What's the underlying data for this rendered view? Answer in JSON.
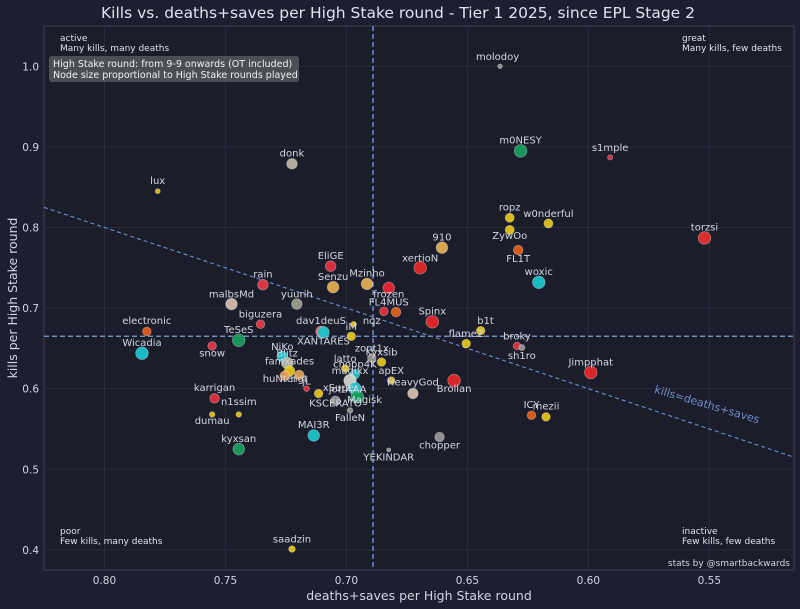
{
  "chart_data": {
    "type": "scatter",
    "title": "Kills vs. deaths+saves per High Stake round - Tier 1 2025, since EPL Stage 2",
    "xlabel": "deaths+saves per High Stake round",
    "ylabel": "kills per High Stake round",
    "xlim": [
      0.825,
      0.515
    ],
    "ylim": [
      0.375,
      1.05
    ],
    "x_inverted": true,
    "grid": true,
    "x_ticks": [
      "0.80",
      "0.75",
      "0.70",
      "0.65",
      "0.60",
      "0.55"
    ],
    "y_ticks": [
      "0.4",
      "0.5",
      "0.6",
      "0.7",
      "0.8",
      "0.9",
      "1.0"
    ],
    "reference_lines": {
      "x_mean": 0.689,
      "y_mean": 0.665
    },
    "trend_line": {
      "label": "kills=deaths+saves"
    },
    "quadrant_labels": {
      "top_left": [
        "active",
        "Many kills, many deaths"
      ],
      "top_right": [
        "great",
        "Many kills, few deaths"
      ],
      "bottom_left": [
        "poor",
        "Few kills, many deaths"
      ],
      "bottom_right": [
        "inactive",
        "Few kills, few deaths"
      ]
    },
    "note": [
      "High Stake round: from 9-9 onwards (OT included)",
      "Node size proportional to High Stake rounds played"
    ],
    "credit": "stats by @smartbackwards",
    "points": [
      {
        "name": "molodoy",
        "x": 0.6365,
        "y": 1.0,
        "size": 3,
        "color": "#9a9a9a"
      },
      {
        "name": "m0NESY",
        "x": 0.628,
        "y": 0.895,
        "size": 11,
        "color": "#18a060"
      },
      {
        "name": "s1mple",
        "x": 0.591,
        "y": 0.887,
        "size": 3.5,
        "color": "#e03050"
      },
      {
        "name": "donk",
        "x": 0.7225,
        "y": 0.879,
        "size": 9,
        "color": "#c0b8a8"
      },
      {
        "name": "lux",
        "x": 0.778,
        "y": 0.845,
        "size": 3.5,
        "color": "#e8b818"
      },
      {
        "name": "torzsi",
        "x": 0.552,
        "y": 0.787,
        "size": 11,
        "color": "#e83030"
      },
      {
        "name": "ropz",
        "x": 0.6325,
        "y": 0.812,
        "size": 7.5,
        "color": "#e8c818"
      },
      {
        "name": "w0nderful",
        "x": 0.6165,
        "y": 0.805,
        "size": 7.5,
        "color": "#e8c818"
      },
      {
        "name": "ZywOo",
        "x": 0.6325,
        "y": 0.797,
        "size": 7.5,
        "color": "#e8c818"
      },
      {
        "name": "910",
        "x": 0.6605,
        "y": 0.775,
        "size": 10,
        "color": "#e8b050"
      },
      {
        "name": "FL1T",
        "x": 0.629,
        "y": 0.772,
        "size": 8,
        "color": "#e86018"
      },
      {
        "name": "EliGE",
        "x": 0.7065,
        "y": 0.752,
        "size": 9,
        "color": "#e83040"
      },
      {
        "name": "xertioN",
        "x": 0.6695,
        "y": 0.75,
        "size": 11,
        "color": "#e82828"
      },
      {
        "name": "woxic",
        "x": 0.6205,
        "y": 0.732,
        "size": 11,
        "color": "#18c8d0"
      },
      {
        "name": "rain",
        "x": 0.7345,
        "y": 0.729,
        "size": 9,
        "color": "#e83848"
      },
      {
        "name": "Senzu",
        "x": 0.7055,
        "y": 0.726,
        "size": 10,
        "color": "#e8b050"
      },
      {
        "name": "Mzinho",
        "x": 0.6915,
        "y": 0.73,
        "size": 10,
        "color": "#e8b050"
      },
      {
        "name": "frozen",
        "x": 0.6825,
        "y": 0.725,
        "size": 10,
        "color": "#e82838"
      },
      {
        "name": "malbsMd",
        "x": 0.7475,
        "y": 0.705,
        "size": 10,
        "color": "#d8c0b0"
      },
      {
        "name": "yuurih",
        "x": 0.7205,
        "y": 0.705,
        "size": 9,
        "color": "#a0a090"
      },
      {
        "name": "FL4MUS",
        "x": 0.6845,
        "y": 0.696,
        "size": 7,
        "color": "#e83040"
      },
      {
        "name": "apEX",
        "x": 0.6795,
        "y": 0.695,
        "size": 8,
        "color": "#e86018"
      },
      {
        "name": "biguzera",
        "x": 0.7355,
        "y": 0.68,
        "size": 7,
        "color": "#e83848"
      },
      {
        "name": "Spinx",
        "x": 0.6645,
        "y": 0.683,
        "size": 11,
        "color": "#e82828"
      },
      {
        "name": "dav1deuS",
        "x": 0.7105,
        "y": 0.671,
        "size": 9,
        "color": "#e86060"
      },
      {
        "name": "electronic",
        "x": 0.7825,
        "y": 0.671,
        "size": 7,
        "color": "#e86018"
      },
      {
        "name": "nqz",
        "x": 0.697,
        "y": 0.68,
        "size": 4,
        "color": "#e8c818"
      },
      {
        "name": "b1t",
        "x": 0.6445,
        "y": 0.672,
        "size": 7,
        "color": "#e8c818"
      },
      {
        "name": "XANTARES",
        "x": 0.7095,
        "y": 0.67,
        "size": 10,
        "color": "#18c8d0"
      },
      {
        "name": "iM",
        "x": 0.698,
        "y": 0.665,
        "size": 7,
        "color": "#e8c818"
      },
      {
        "name": "TeSeS",
        "x": 0.7445,
        "y": 0.66,
        "size": 11,
        "color": "#18a060"
      },
      {
        "name": "flameZ",
        "x": 0.6505,
        "y": 0.656,
        "size": 7,
        "color": "#e8c818"
      },
      {
        "name": "broky",
        "x": 0.6295,
        "y": 0.653,
        "size": 6,
        "color": "#e83040"
      },
      {
        "name": "sh1ro",
        "x": 0.6275,
        "y": 0.651,
        "size": 4.5,
        "color": "#9a9a9a"
      },
      {
        "name": "snow",
        "x": 0.7555,
        "y": 0.653,
        "size": 7,
        "color": "#e83848"
      },
      {
        "name": "Wicadia",
        "x": 0.7845,
        "y": 0.644,
        "size": 11,
        "color": "#18c8d0"
      },
      {
        "name": "NiKo",
        "x": 0.7265,
        "y": 0.64,
        "size": 9,
        "color": "#18c8d0"
      },
      {
        "name": "zont1x",
        "x": 0.6895,
        "y": 0.638,
        "size": 7,
        "color": "#9a9a9a"
      },
      {
        "name": "Kyxsib",
        "x": 0.6855,
        "y": 0.633,
        "size": 7,
        "color": "#e8c818"
      },
      {
        "name": "Blitz",
        "x": 0.7245,
        "y": 0.632,
        "size": 10,
        "color": "#b8b8a8"
      },
      {
        "name": "latto",
        "x": 0.7005,
        "y": 0.625,
        "size": 6,
        "color": "#e8c818"
      },
      {
        "name": "famxades",
        "x": 0.7235,
        "y": 0.622,
        "size": 9,
        "color": "#e8c818"
      },
      {
        "name": "Jimpphat",
        "x": 0.599,
        "y": 0.62,
        "size": 11,
        "color": "#e82828"
      },
      {
        "name": "chopper4K",
        "x": 0.6965,
        "y": 0.618,
        "size": 8,
        "color": "#18c8d0"
      },
      {
        "name": "magixx",
        "x": 0.6985,
        "y": 0.61,
        "size": 11,
        "color": "#d8d8d0"
      },
      {
        "name": "apEX2",
        "x": 0.6815,
        "y": 0.61,
        "size": 6,
        "color": "#e8c818"
      },
      {
        "name": "hunter",
        "x": 0.7255,
        "y": 0.616,
        "size": 8,
        "color": "#e8a050"
      },
      {
        "name": "rigt",
        "x": 0.7195,
        "y": 0.617,
        "size": 8,
        "color": "#e8a050"
      },
      {
        "name": "Brollan",
        "x": 0.6555,
        "y": 0.61,
        "size": 11,
        "color": "#e82828"
      },
      {
        "name": "HeavyGod",
        "x": 0.6725,
        "y": 0.594,
        "size": 9,
        "color": "#d8c0b0"
      },
      {
        "name": "jottAAA",
        "x": 0.6965,
        "y": 0.6,
        "size": 11,
        "color": "#18c8d0"
      },
      {
        "name": "Magisk",
        "x": 0.6955,
        "y": 0.59,
        "size": 11,
        "color": "#18a060"
      },
      {
        "name": "jL",
        "x": 0.7165,
        "y": 0.6,
        "size": 4,
        "color": "#e83040"
      },
      {
        "name": "xSuper",
        "x": 0.7115,
        "y": 0.594,
        "size": 7,
        "color": "#e8c818"
      },
      {
        "name": "karrigan",
        "x": 0.7545,
        "y": 0.588,
        "size": 8,
        "color": "#e83040"
      },
      {
        "name": "KSCERATO",
        "x": 0.7045,
        "y": 0.585,
        "size": 8,
        "color": "#9a9a9a"
      },
      {
        "name": "n1ssim",
        "x": 0.7445,
        "y": 0.568,
        "size": 4,
        "color": "#e8c818"
      },
      {
        "name": "dumau",
        "x": 0.7555,
        "y": 0.568,
        "size": 4,
        "color": "#e8c818"
      },
      {
        "name": "ICY",
        "x": 0.6235,
        "y": 0.567,
        "size": 7,
        "color": "#e86018"
      },
      {
        "name": "mezii",
        "x": 0.6175,
        "y": 0.565,
        "size": 7,
        "color": "#e8c818"
      },
      {
        "name": "FalleN",
        "x": 0.6985,
        "y": 0.573,
        "size": 4,
        "color": "#9a9a9a"
      },
      {
        "name": "MAI3R",
        "x": 0.7135,
        "y": 0.542,
        "size": 10,
        "color": "#18c8d0"
      },
      {
        "name": "chopper",
        "x": 0.6615,
        "y": 0.54,
        "size": 8,
        "color": "#9a9a9a"
      },
      {
        "name": "kyxsan",
        "x": 0.7445,
        "y": 0.525,
        "size": 10,
        "color": "#18a060"
      },
      {
        "name": "YEKINDAR",
        "x": 0.6825,
        "y": 0.524,
        "size": 2.5,
        "color": "#9a9a9a"
      },
      {
        "name": "saadzin",
        "x": 0.7225,
        "y": 0.401,
        "size": 5,
        "color": "#e8c818"
      }
    ],
    "labels": [
      {
        "text": "molodoy",
        "x": 0.6375,
        "y": 1.008
      },
      {
        "text": "m0NESY",
        "x": 0.628,
        "y": 0.904
      },
      {
        "text": "s1mple",
        "x": 0.591,
        "y": 0.895
      },
      {
        "text": "donk",
        "x": 0.7225,
        "y": 0.888
      },
      {
        "text": "lux",
        "x": 0.778,
        "y": 0.854
      },
      {
        "text": "torzsi",
        "x": 0.552,
        "y": 0.796
      },
      {
        "text": "ropz",
        "x": 0.6325,
        "y": 0.821
      },
      {
        "text": "w0nderful",
        "x": 0.6165,
        "y": 0.813
      },
      {
        "text": "ZywOo",
        "x": 0.6325,
        "y": 0.786
      },
      {
        "text": "910",
        "x": 0.6605,
        "y": 0.784
      },
      {
        "text": "FL1T",
        "x": 0.629,
        "y": 0.757
      },
      {
        "text": "EliGE",
        "x": 0.7065,
        "y": 0.761
      },
      {
        "text": "xertioN",
        "x": 0.6695,
        "y": 0.758
      },
      {
        "text": "woxic",
        "x": 0.6205,
        "y": 0.741
      },
      {
        "text": "rain",
        "x": 0.7345,
        "y": 0.738
      },
      {
        "text": "Senzu",
        "x": 0.7055,
        "y": 0.735
      },
      {
        "text": "Mzinho",
        "x": 0.6915,
        "y": 0.739
      },
      {
        "text": "frozen",
        "x": 0.6825,
        "y": 0.713
      },
      {
        "text": "malbsMd",
        "x": 0.7475,
        "y": 0.713
      },
      {
        "text": "yuurih",
        "x": 0.7205,
        "y": 0.713
      },
      {
        "text": "FL4MUS",
        "x": 0.6825,
        "y": 0.703
      },
      {
        "text": "biguzera",
        "x": 0.7355,
        "y": 0.688
      },
      {
        "text": "Spinx",
        "x": 0.6645,
        "y": 0.692
      },
      {
        "text": "dav1deuS",
        "x": 0.7105,
        "y": 0.68
      },
      {
        "text": "electronic",
        "x": 0.7825,
        "y": 0.68
      },
      {
        "text": "nqz",
        "x": 0.6895,
        "y": 0.68
      },
      {
        "text": "b1t",
        "x": 0.6425,
        "y": 0.68
      },
      {
        "text": "XANTARES",
        "x": 0.7095,
        "y": 0.655
      },
      {
        "text": "iM",
        "x": 0.698,
        "y": 0.673
      },
      {
        "text": "TeSeS",
        "x": 0.7445,
        "y": 0.669
      },
      {
        "text": "flameZ",
        "x": 0.6505,
        "y": 0.664
      },
      {
        "text": "broky",
        "x": 0.6295,
        "y": 0.661
      },
      {
        "text": "sh1ro",
        "x": 0.6275,
        "y": 0.637
      },
      {
        "text": "snow",
        "x": 0.7555,
        "y": 0.64
      },
      {
        "text": "Wicadia",
        "x": 0.7845,
        "y": 0.653
      },
      {
        "text": "NiKo",
        "x": 0.7265,
        "y": 0.648
      },
      {
        "text": "zont1x",
        "x": 0.6895,
        "y": 0.646
      },
      {
        "text": "Kyxsib",
        "x": 0.6855,
        "y": 0.641
      },
      {
        "text": "Blitz",
        "x": 0.7245,
        "y": 0.64
      },
      {
        "text": "latto",
        "x": 0.7005,
        "y": 0.633
      },
      {
        "text": "famxades",
        "x": 0.7235,
        "y": 0.63
      },
      {
        "text": "Jimpphat",
        "x": 0.599,
        "y": 0.629
      },
      {
        "text": "chopp4K",
        "x": 0.6965,
        "y": 0.626
      },
      {
        "text": "magixx",
        "x": 0.6985,
        "y": 0.618
      },
      {
        "text": "apEX",
        "x": 0.6815,
        "y": 0.618
      },
      {
        "text": "huNter",
        "x": 0.7275,
        "y": 0.608
      },
      {
        "text": "rigt",
        "x": 0.7195,
        "y": 0.608
      },
      {
        "text": "Brollan",
        "x": 0.6555,
        "y": 0.596
      },
      {
        "text": "HeavyGod",
        "x": 0.6725,
        "y": 0.604
      },
      {
        "text": "jottAAA",
        "x": 0.6995,
        "y": 0.595
      },
      {
        "text": "Magisk",
        "x": 0.6925,
        "y": 0.582
      },
      {
        "text": "jL",
        "x": 0.7165,
        "y": 0.605
      },
      {
        "text": "xSuper",
        "x": 0.7025,
        "y": 0.597
      },
      {
        "text": "karrigan",
        "x": 0.7545,
        "y": 0.597
      },
      {
        "text": "KSCERATO",
        "x": 0.7045,
        "y": 0.578
      },
      {
        "text": "n1ssim",
        "x": 0.7445,
        "y": 0.58
      },
      {
        "text": "dumau",
        "x": 0.7555,
        "y": 0.556
      },
      {
        "text": "ICY",
        "x": 0.6235,
        "y": 0.576
      },
      {
        "text": "mezii",
        "x": 0.6175,
        "y": 0.574
      },
      {
        "text": "FalleN",
        "x": 0.6985,
        "y": 0.56
      },
      {
        "text": "MAI3R",
        "x": 0.7135,
        "y": 0.551
      },
      {
        "text": "chopper",
        "x": 0.6615,
        "y": 0.526
      },
      {
        "text": "kyxsan",
        "x": 0.7445,
        "y": 0.534
      },
      {
        "text": "YEKINDAR",
        "x": 0.6825,
        "y": 0.511
      },
      {
        "text": "saadzin",
        "x": 0.7225,
        "y": 0.409
      }
    ]
  }
}
